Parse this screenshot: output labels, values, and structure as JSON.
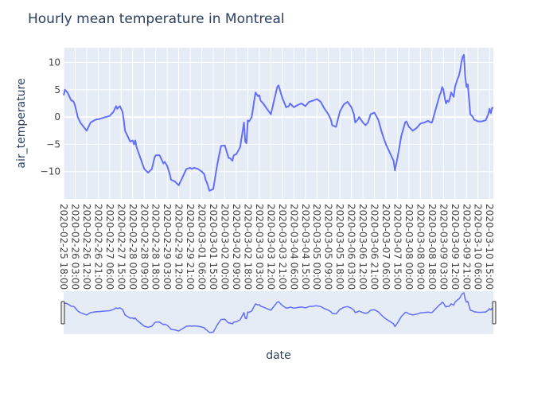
{
  "chart_data": {
    "type": "line",
    "title": "Hourly mean temperature in Montreal",
    "xlabel": "date",
    "ylabel": "air_temperature",
    "ylim": [
      -15,
      12.7
    ],
    "yticks": [
      -10,
      -5,
      0,
      5,
      10
    ],
    "grid": true,
    "legend": "none",
    "has_range_slider": true,
    "colors": {
      "line": "#636efa",
      "plot_bg": "#e5ecf6",
      "grid": "#ffffff",
      "text": "#2a3f5f",
      "axis_text": "#444444"
    },
    "xticks": [
      "2020-02-25 18:00",
      "2020-02-26 03:00",
      "2020-02-26 12:00",
      "2020-02-26 21:00",
      "2020-02-27 06:00",
      "2020-02-27 15:00",
      "2020-02-28 00:00",
      "2020-02-28 09:00",
      "2020-02-28 18:00",
      "2020-02-29 03:00",
      "2020-02-29 12:00",
      "2020-02-29 21:00",
      "2020-03-01 06:00",
      "2020-03-01 15:00",
      "2020-03-02 00:00",
      "2020-03-02 09:00",
      "2020-03-02 18:00",
      "2020-03-03 03:00",
      "2020-03-03 12:00",
      "2020-03-03 21:00",
      "2020-03-04 06:00",
      "2020-03-04 15:00",
      "2020-03-05 00:00",
      "2020-03-05 09:00",
      "2020-03-05 18:00",
      "2020-03-06 03:00",
      "2020-03-06 12:00",
      "2020-03-06 21:00",
      "2020-03-07 06:00",
      "2020-03-07 15:00",
      "2020-03-08 00:00",
      "2020-03-08 09:00",
      "2020-03-08 18:00",
      "2020-03-09 03:00",
      "2020-03-09 12:00",
      "2020-03-09 21:00",
      "2020-03-10 06:00",
      "2020-03-10 15:00"
    ],
    "series": [
      {
        "x": [
          "2020-02-25 18:00",
          "2020-02-25 19:00",
          "2020-02-25 21:00",
          "2020-02-26 00:00",
          "2020-02-26 01:00",
          "2020-02-26 02:00",
          "2020-02-26 03:00",
          "2020-02-26 05:00",
          "2020-02-26 07:00",
          "2020-02-26 09:00",
          "2020-02-26 12:00",
          "2020-02-26 15:00",
          "2020-02-26 18:00",
          "2020-02-26 20:00",
          "2020-02-26 21:00",
          "2020-02-27 00:00",
          "2020-02-27 03:00",
          "2020-02-27 06:00",
          "2020-02-27 09:00",
          "2020-02-27 11:00",
          "2020-02-27 12:00",
          "2020-02-27 13:00",
          "2020-02-27 14:00",
          "2020-02-27 16:00",
          "2020-02-27 17:00",
          "2020-02-27 18:00",
          "2020-02-27 20:00",
          "2020-02-27 22:00",
          "2020-02-28 00:00",
          "2020-02-28 01:00",
          "2020-02-28 02:00",
          "2020-02-28 03:00",
          "2020-02-28 06:00",
          "2020-02-28 09:00",
          "2020-02-28 12:00",
          "2020-02-28 15:00",
          "2020-02-28 17:00",
          "2020-02-28 18:00",
          "2020-02-28 21:00",
          "2020-02-29 00:00",
          "2020-02-29 01:00",
          "2020-02-29 03:00",
          "2020-02-29 05:00",
          "2020-02-29 06:00",
          "2020-02-29 09:00",
          "2020-02-29 12:00",
          "2020-02-29 14:00",
          "2020-02-29 15:00",
          "2020-02-29 17:00",
          "2020-02-29 18:00",
          "2020-02-29 21:00",
          "2020-02-29 22:00",
          "2020-03-01 00:00",
          "2020-03-01 03:00",
          "2020-03-01 06:00",
          "2020-03-01 08:00",
          "2020-03-01 09:00",
          "2020-03-01 10:00",
          "2020-03-01 12:00",
          "2020-03-01 15:00",
          "2020-03-01 18:00",
          "2020-03-01 21:00",
          "2020-03-02 00:00",
          "2020-03-02 03:00",
          "2020-03-02 04:00",
          "2020-03-02 06:00",
          "2020-03-02 07:00",
          "2020-03-02 09:00",
          "2020-03-02 12:00",
          "2020-03-02 15:00",
          "2020-03-02 16:00",
          "2020-03-02 17:00",
          "2020-03-02 18:00",
          "2020-03-02 19:00",
          "2020-03-02 21:00",
          "2020-03-03 00:00",
          "2020-03-03 02:00",
          "2020-03-03 03:00",
          "2020-03-03 04:00",
          "2020-03-03 06:00",
          "2020-03-03 09:00",
          "2020-03-03 12:00",
          "2020-03-03 14:00",
          "2020-03-03 15:00",
          "2020-03-03 17:00",
          "2020-03-03 18:00",
          "2020-03-03 21:00",
          "2020-03-04 00:00",
          "2020-03-04 02:00",
          "2020-03-04 03:00",
          "2020-03-04 06:00",
          "2020-03-04 09:00",
          "2020-03-04 12:00",
          "2020-03-04 15:00",
          "2020-03-04 18:00",
          "2020-03-04 21:00",
          "2020-03-05 00:00",
          "2020-03-05 03:00",
          "2020-03-05 06:00",
          "2020-03-05 09:00",
          "2020-03-05 11:00",
          "2020-03-05 12:00",
          "2020-03-05 15:00",
          "2020-03-05 18:00",
          "2020-03-05 21:00",
          "2020-03-06 00:00",
          "2020-03-06 03:00",
          "2020-03-06 05:00",
          "2020-03-06 06:00",
          "2020-03-06 08:00",
          "2020-03-06 09:00",
          "2020-03-06 12:00",
          "2020-03-06 14:00",
          "2020-03-06 16:00",
          "2020-03-06 18:00",
          "2020-03-06 21:00",
          "2020-03-07 00:00",
          "2020-03-07 03:00",
          "2020-03-07 06:00",
          "2020-03-07 09:00",
          "2020-03-07 12:00",
          "2020-03-07 13:00",
          "2020-03-07 15:00",
          "2020-03-07 18:00",
          "2020-03-07 21:00",
          "2020-03-07 22:00",
          "2020-03-08 00:00",
          "2020-03-08 03:00",
          "2020-03-08 06:00",
          "2020-03-08 09:00",
          "2020-03-08 12:00",
          "2020-03-08 14:00",
          "2020-03-08 15:00",
          "2020-03-08 17:00",
          "2020-03-08 18:00",
          "2020-03-08 21:00",
          "2020-03-09 00:00",
          "2020-03-09 01:00",
          "2020-03-09 02:00",
          "2020-03-09 03:00",
          "2020-03-09 04:00",
          "2020-03-09 05:00",
          "2020-03-09 06:00",
          "2020-03-09 07:00",
          "2020-03-09 08:00",
          "2020-03-09 09:00",
          "2020-03-09 11:00",
          "2020-03-09 12:00",
          "2020-03-09 14:00",
          "2020-03-09 15:00",
          "2020-03-09 16:00",
          "2020-03-09 17:00",
          "2020-03-09 18:00",
          "2020-03-09 19:00",
          "2020-03-09 20:00",
          "2020-03-09 21:00",
          "2020-03-09 22:00",
          "2020-03-10 00:00",
          "2020-03-10 02:00",
          "2020-03-10 03:00",
          "2020-03-10 06:00",
          "2020-03-10 09:00",
          "2020-03-10 12:00",
          "2020-03-10 14:00",
          "2020-03-10 15:00",
          "2020-03-10 16:00",
          "2020-03-10 17:00",
          "2020-03-10 18:00"
        ],
        "y": [
          4.0,
          5.0,
          4.5,
          3.0,
          3.0,
          2.7,
          2.0,
          0.0,
          -1.0,
          -1.6,
          -2.5,
          -1.0,
          -0.6,
          -0.4,
          -0.4,
          -0.2,
          0.0,
          0.2,
          1.0,
          2.0,
          1.5,
          1.8,
          2.0,
          1.0,
          -0.5,
          -2.5,
          -3.5,
          -4.5,
          -4.3,
          -5.0,
          -4.3,
          -5.5,
          -7.5,
          -9.5,
          -10.2,
          -9.5,
          -7.5,
          -7.0,
          -7.0,
          -8.5,
          -8.2,
          -9.0,
          -10.5,
          -11.5,
          -11.8,
          -12.5,
          -11.5,
          -11.0,
          -10.0,
          -9.5,
          -9.3,
          -9.5,
          -9.3,
          -9.5,
          -10.0,
          -10.5,
          -11.5,
          -12.0,
          -13.5,
          -13.2,
          -8.8,
          -5.3,
          -5.2,
          -7.5,
          -7.5,
          -8.0,
          -7.0,
          -6.8,
          -5.5,
          -1.0,
          -4.5,
          -4.8,
          -0.6,
          -0.8,
          0.0,
          4.5,
          3.8,
          4.0,
          3.0,
          2.5,
          1.5,
          0.5,
          2.5,
          3.5,
          5.5,
          5.8,
          3.5,
          1.8,
          2.0,
          2.5,
          1.8,
          2.2,
          2.5,
          2.0,
          2.8,
          3.0,
          3.3,
          2.8,
          1.5,
          0.5,
          -0.5,
          -1.5,
          -1.8,
          1.0,
          2.3,
          2.8,
          1.8,
          0.5,
          -1.0,
          -0.5,
          0.0,
          -1.0,
          -1.5,
          -1.0,
          0.5,
          0.8,
          -0.5,
          -3.0,
          -5.0,
          -6.5,
          -8.0,
          -9.8,
          -7.5,
          -3.5,
          -1.0,
          -0.8,
          -1.8,
          -2.5,
          -2.0,
          -1.2,
          -1.0,
          -0.8,
          -0.7,
          -1.0,
          -1.0,
          1.5,
          4.0,
          4.5,
          5.5,
          5.0,
          3.5,
          2.5,
          3.0,
          2.8,
          3.5,
          4.5,
          3.7,
          5.5,
          7.0,
          7.5,
          8.5,
          10.0,
          11.0,
          11.4,
          7.5,
          5.5,
          6.0,
          0.5,
          0.0,
          -0.5,
          -0.8,
          -0.8,
          -0.6,
          0.5,
          1.5,
          0.7,
          1.7,
          1.7
        ]
      }
    ]
  }
}
